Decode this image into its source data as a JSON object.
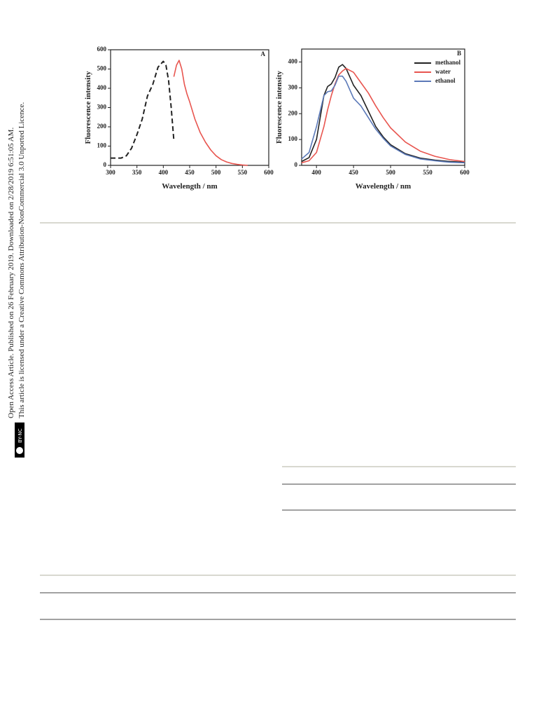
{
  "sidebar": {
    "line1": "Open Access Article. Published on 26 February 2019. Downloaded on 2/28/2019 6:51:05 AM.",
    "line2": "This article is licensed under a Creative Commons Attribution-NonCommercial 3.0 Unported Licence.",
    "badge": "BY-NC"
  },
  "chart_data": [
    {
      "type": "line",
      "annotation": "A",
      "xlabel": "Wavelength / nm",
      "ylabel": "Fluorescence intensity",
      "xlim": [
        300,
        600
      ],
      "ylim": [
        0,
        600
      ],
      "xticks": [
        300,
        350,
        400,
        450,
        500,
        550,
        600
      ],
      "yticks": [
        0,
        100,
        200,
        300,
        400,
        500,
        600
      ],
      "series": [
        {
          "color": "#222222",
          "dashed": true,
          "x": [
            300,
            320,
            330,
            340,
            350,
            360,
            370,
            380,
            390,
            400,
            405,
            410,
            415,
            420
          ],
          "values": [
            38,
            38,
            50,
            90,
            160,
            240,
            360,
            420,
            510,
            540,
            520,
            440,
            300,
            130
          ]
        },
        {
          "color": "#e8554f",
          "dashed": false,
          "x": [
            420,
            425,
            430,
            435,
            440,
            445,
            450,
            460,
            470,
            480,
            490,
            500,
            510,
            520,
            530,
            540,
            550,
            560
          ],
          "values": [
            460,
            520,
            545,
            500,
            420,
            370,
            330,
            240,
            170,
            120,
            80,
            50,
            30,
            18,
            10,
            5,
            2,
            0
          ]
        }
      ]
    },
    {
      "type": "line",
      "annotation": "B",
      "xlabel": "Wavelength / nm",
      "ylabel": "Fluorescence intensity",
      "xlim": [
        380,
        600
      ],
      "ylim": [
        0,
        450
      ],
      "xticks": [
        400,
        450,
        500,
        550,
        600
      ],
      "yticks": [
        0,
        100,
        200,
        300,
        400
      ],
      "x": [
        380,
        390,
        400,
        410,
        415,
        420,
        425,
        430,
        435,
        440,
        450,
        460,
        470,
        480,
        490,
        500,
        520,
        540,
        560,
        580,
        600
      ],
      "series": [
        {
          "name": "methanol",
          "color": "#222222",
          "values": [
            15,
            30,
            100,
            270,
            305,
            315,
            340,
            380,
            390,
            375,
            310,
            270,
            210,
            150,
            110,
            80,
            45,
            28,
            20,
            15,
            12
          ]
        },
        {
          "name": "water",
          "color": "#e8554f",
          "values": [
            10,
            18,
            50,
            150,
            215,
            270,
            315,
            350,
            365,
            375,
            360,
            320,
            280,
            230,
            185,
            145,
            90,
            55,
            35,
            22,
            15
          ]
        },
        {
          "name": "ethanol",
          "color": "#5b79b8",
          "values": [
            25,
            50,
            150,
            270,
            285,
            288,
            310,
            345,
            345,
            325,
            260,
            230,
            185,
            140,
            105,
            75,
            42,
            25,
            18,
            12,
            10
          ]
        }
      ]
    }
  ]
}
